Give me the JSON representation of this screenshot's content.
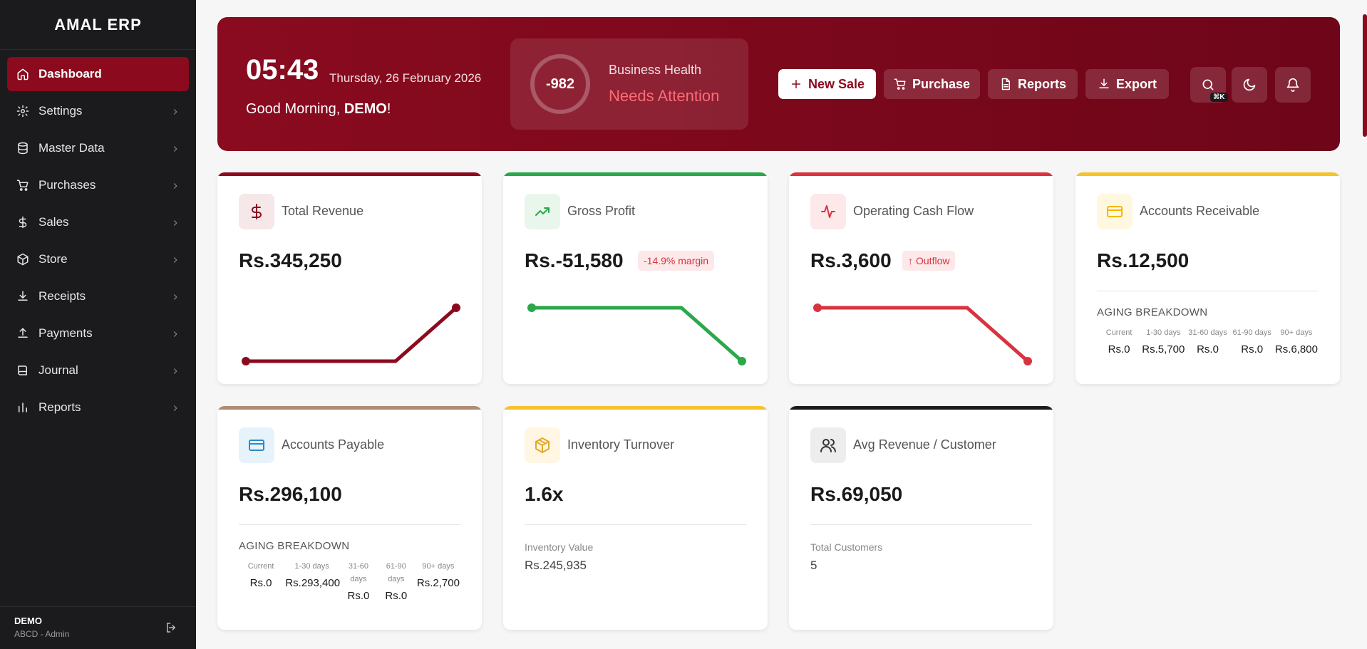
{
  "sidebar": {
    "brand": "AMAL ERP",
    "items": [
      {
        "label": "Dashboard",
        "icon": "home-icon"
      },
      {
        "label": "Settings",
        "icon": "gear-icon"
      },
      {
        "label": "Master Data",
        "icon": "database-icon"
      },
      {
        "label": "Purchases",
        "icon": "cart-icon"
      },
      {
        "label": "Sales",
        "icon": "dollar-icon"
      },
      {
        "label": "Store",
        "icon": "box-icon"
      },
      {
        "label": "Receipts",
        "icon": "download-icon"
      },
      {
        "label": "Payments",
        "icon": "upload-icon"
      },
      {
        "label": "Journal",
        "icon": "book-icon"
      },
      {
        "label": "Reports",
        "icon": "chart-icon"
      }
    ],
    "user": {
      "name": "DEMO",
      "role": "ABCD - Admin"
    }
  },
  "header": {
    "time": "05:43",
    "date": "Thursday, 26 February 2026",
    "greeting_prefix": "Good Morning, ",
    "greeting_name": "DEMO",
    "greeting_suffix": "!",
    "health": {
      "score": "-982",
      "title": "Business Health",
      "status": "Needs Attention"
    },
    "buttons": {
      "new_sale": "New Sale",
      "purchase": "Purchase",
      "reports": "Reports",
      "export": "Export"
    },
    "search_shortcut": "⌘K"
  },
  "cards": {
    "revenue": {
      "title": "Total Revenue",
      "value": "Rs.345,250",
      "trend": [
        0,
        0,
        0,
        1
      ]
    },
    "profit": {
      "title": "Gross Profit",
      "value": "Rs.-51,580",
      "badge": "-14.9% margin",
      "trend": [
        1,
        1,
        1,
        0
      ]
    },
    "cashflow": {
      "title": "Operating Cash Flow",
      "value": "Rs.3,600",
      "badge": "Outflow",
      "trend": [
        1,
        1,
        1,
        0
      ]
    },
    "receivable": {
      "title": "Accounts Receivable",
      "value": "Rs.12,500",
      "aging_title": "AGING BREAKDOWN",
      "aging": [
        {
          "label": "Current",
          "value": "Rs.0"
        },
        {
          "label": "1-30 days",
          "value": "Rs.5,700"
        },
        {
          "label": "31-60 days",
          "value": "Rs.0"
        },
        {
          "label": "61-90 days",
          "value": "Rs.0"
        },
        {
          "label": "90+ days",
          "value": "Rs.6,800"
        }
      ]
    },
    "payable": {
      "title": "Accounts Payable",
      "value": "Rs.296,100",
      "aging_title": "AGING BREAKDOWN",
      "aging": [
        {
          "label": "Current",
          "value": "Rs.0"
        },
        {
          "label": "1-30 days",
          "value": "Rs.293,400"
        },
        {
          "label": "31-60 days",
          "value": "Rs.0"
        },
        {
          "label": "61-90 days",
          "value": "Rs.0"
        },
        {
          "label": "90+ days",
          "value": "Rs.2,700"
        }
      ]
    },
    "inventory": {
      "title": "Inventory Turnover",
      "value": "1.6x",
      "sub_label": "Inventory Value",
      "sub_value": "Rs.245,935"
    },
    "avg_revenue": {
      "title": "Avg Revenue / Customer",
      "value": "Rs.69,050",
      "sub_label": "Total Customers",
      "sub_value": "5"
    }
  },
  "colors": {
    "brand": "#8b0a1e",
    "green": "#2aa84a",
    "red": "#d8333f",
    "yellow": "#f5c22b",
    "brown": "#b08b73",
    "dark": "#1b1b1d"
  }
}
